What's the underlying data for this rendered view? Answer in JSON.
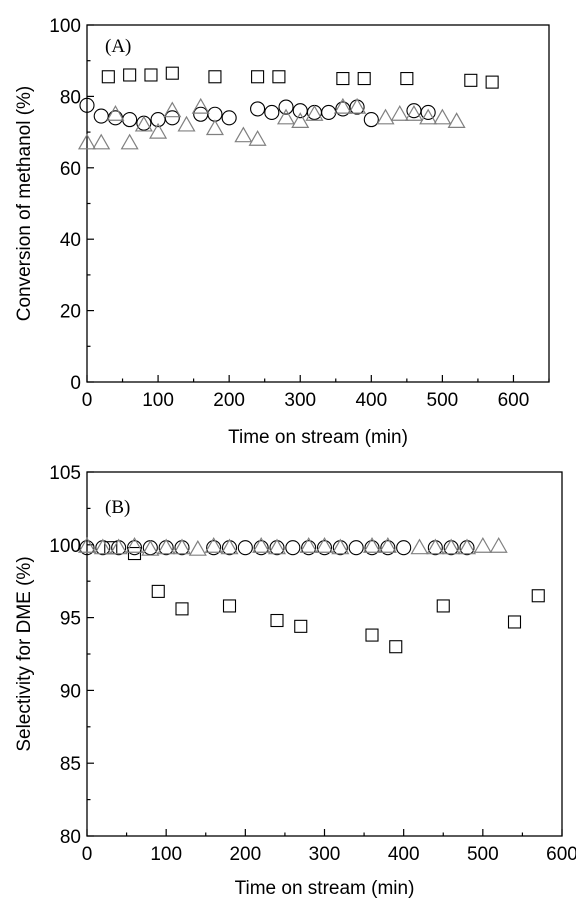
{
  "chart_data": [
    {
      "type": "scatter",
      "panel_label": "(A)",
      "xlabel": "Time on stream (min)",
      "ylabel": "Conversion of methanol (%)",
      "xlim": [
        0,
        650
      ],
      "ylim": [
        0,
        100
      ],
      "xticks": [
        0,
        100,
        200,
        300,
        400,
        500,
        600
      ],
      "yticks": [
        0,
        20,
        40,
        60,
        80,
        100
      ],
      "series": [
        {
          "marker": "square",
          "color": "#000000",
          "x": [
            30,
            60,
            90,
            120,
            180,
            240,
            270,
            360,
            390,
            450,
            540,
            570
          ],
          "y": [
            85.5,
            86,
            86,
            86.5,
            85.5,
            85.5,
            85.5,
            85,
            85,
            85,
            84.5,
            84
          ]
        },
        {
          "marker": "circle",
          "color": "#000000",
          "x": [
            0,
            20,
            40,
            60,
            80,
            100,
            120,
            160,
            180,
            200,
            240,
            260,
            280,
            300,
            320,
            340,
            360,
            380,
            400,
            460,
            480
          ],
          "y": [
            77.5,
            74.5,
            74,
            73.5,
            72.5,
            73.5,
            74,
            75,
            75,
            74,
            76.5,
            75.5,
            77,
            76,
            75.5,
            75.5,
            76.5,
            77,
            73.5,
            76,
            75.5
          ]
        },
        {
          "marker": "triangle",
          "color": "#808080",
          "x": [
            0,
            20,
            40,
            60,
            80,
            100,
            120,
            140,
            160,
            180,
            220,
            240,
            280,
            300,
            320,
            360,
            380,
            420,
            440,
            460,
            480,
            500,
            520
          ],
          "y": [
            67,
            67,
            75,
            67,
            72,
            70,
            76,
            72,
            77,
            71,
            69,
            68,
            74,
            73,
            75,
            77,
            77,
            74,
            75,
            75,
            74,
            74,
            73
          ]
        }
      ]
    },
    {
      "type": "scatter",
      "panel_label": "(B)",
      "xlabel": "Time on stream (min)",
      "ylabel": "Selectivity for DME (%)",
      "xlim": [
        0,
        600
      ],
      "ylim": [
        80,
        105
      ],
      "xticks": [
        0,
        100,
        200,
        300,
        400,
        500,
        600
      ],
      "yticks": [
        80,
        85,
        90,
        95,
        100,
        105
      ],
      "series": [
        {
          "marker": "square",
          "color": "#000000",
          "x": [
            30,
            60,
            90,
            120,
            180,
            240,
            270,
            360,
            390,
            450,
            540,
            570
          ],
          "y": [
            99.8,
            99.4,
            96.8,
            95.6,
            95.8,
            94.8,
            94.4,
            93.8,
            93,
            95.8,
            94.7,
            96.5
          ]
        },
        {
          "marker": "circle",
          "color": "#000000",
          "x": [
            0,
            20,
            40,
            60,
            80,
            100,
            120,
            160,
            180,
            200,
            220,
            240,
            260,
            280,
            300,
            320,
            340,
            360,
            380,
            400,
            440,
            460,
            480
          ],
          "y": [
            99.8,
            99.8,
            99.8,
            99.8,
            99.8,
            99.8,
            99.8,
            99.8,
            99.8,
            99.8,
            99.8,
            99.8,
            99.8,
            99.8,
            99.8,
            99.8,
            99.8,
            99.8,
            99.8,
            99.8,
            99.8,
            99.8,
            99.8
          ]
        },
        {
          "marker": "triangle",
          "color": "#808080",
          "x": [
            0,
            20,
            40,
            60,
            80,
            100,
            120,
            140,
            160,
            180,
            220,
            240,
            280,
            300,
            320,
            360,
            380,
            420,
            440,
            460,
            480,
            500,
            520
          ],
          "y": [
            99.9,
            99.8,
            99.8,
            99.9,
            99.7,
            99.8,
            99.8,
            99.7,
            99.9,
            99.8,
            99.9,
            99.8,
            99.9,
            99.9,
            99.8,
            99.9,
            99.9,
            99.8,
            99.8,
            99.8,
            99.8,
            99.9,
            99.9
          ]
        }
      ]
    }
  ]
}
